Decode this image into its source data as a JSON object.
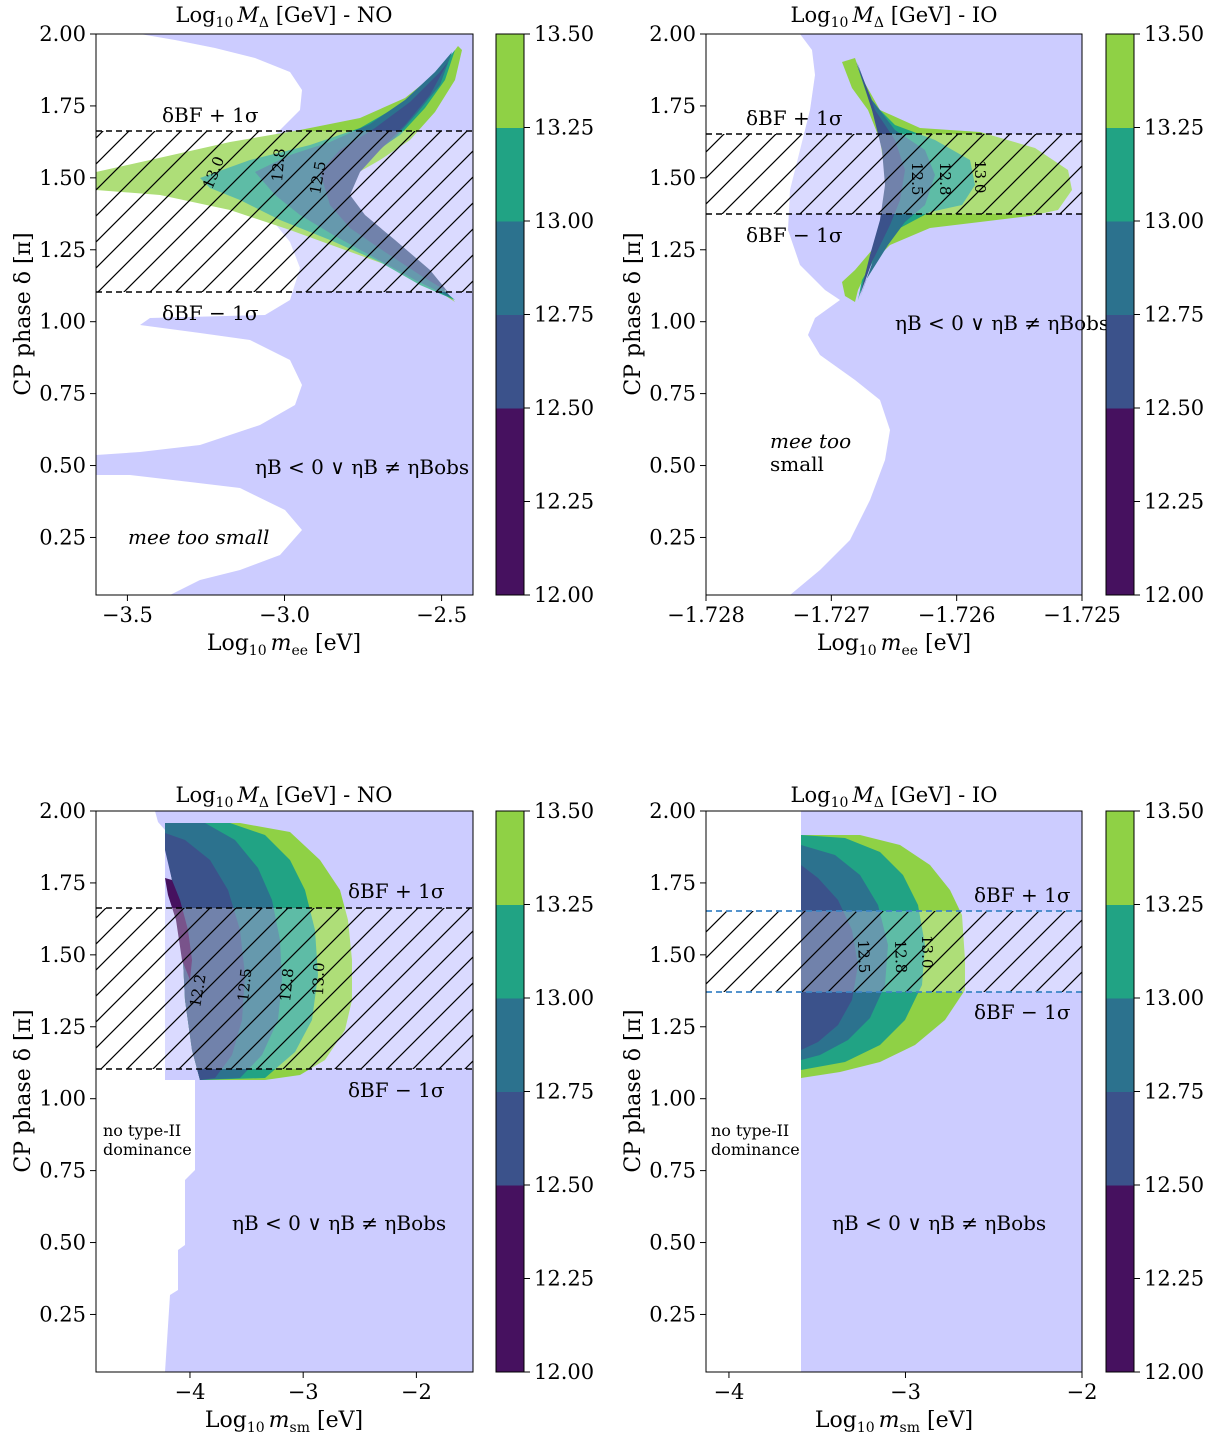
{
  "colors": {
    "excluded_region": "#ccccff",
    "band_hatch": "#000000",
    "dashed_black": "#000000",
    "dashed_blue": "#3d85c6",
    "levels": [
      "#46115f",
      "#3b528b",
      "#2c728e",
      "#21a384",
      "#8fd145"
    ]
  },
  "chart_data": [
    {
      "type": "contour",
      "id": "panel_tl",
      "title_prefix": "Log",
      "title_sub": "10",
      "title_var": "M",
      "title_var_sub": "Δ",
      "title_suffix": " [GeV] - NO",
      "xlabel_prefix": "Log",
      "xlabel_sub": "10",
      "xlabel_var": "m",
      "xlabel_var_sub": "ee",
      "xlabel_unit": " [eV]",
      "ylabel": "CP phase δ [π]",
      "xlim": [
        -3.6,
        -2.4
      ],
      "ylim": [
        0.05,
        2.0
      ],
      "xticks": [
        "−3.5",
        "−3.0",
        "−2.5"
      ],
      "xtick_values": [
        -3.5,
        -3.0,
        -2.5
      ],
      "yticks": [
        "0.25",
        "0.50",
        "0.75",
        "1.00",
        "1.25",
        "1.50",
        "1.75",
        "2.00"
      ],
      "ytick_values": [
        0.25,
        0.5,
        0.75,
        1.0,
        1.25,
        1.5,
        1.75,
        2.0
      ],
      "band": {
        "lower": 1.1,
        "upper": 1.66,
        "line_style": "black-dashed"
      },
      "band_upper_label": "δBF + 1σ",
      "band_lower_label": "δBF − 1σ",
      "contour_labels": [
        "13.0",
        "12.8",
        "12.5"
      ],
      "annotations": [
        "ηB < 0 ∨ ηB ≠ ηBobs",
        "mee too small"
      ],
      "colorbar": {
        "min": 12.0,
        "max": 13.5,
        "ticks": [
          "12.00",
          "12.25",
          "12.50",
          "12.75",
          "13.00",
          "13.25",
          "13.50"
        ]
      }
    },
    {
      "type": "contour",
      "id": "panel_tr",
      "title_prefix": "Log",
      "title_sub": "10",
      "title_var": "M",
      "title_var_sub": "Δ",
      "title_suffix": " [GeV] - IO",
      "xlabel_prefix": "Log",
      "xlabel_sub": "10",
      "xlabel_var": "m",
      "xlabel_var_sub": "ee",
      "xlabel_unit": " [eV]",
      "ylabel": "CP phase δ [π]",
      "xlim": [
        -1.728,
        -1.725
      ],
      "ylim": [
        0.05,
        2.0
      ],
      "xticks": [
        "−1.728",
        "−1.727",
        "−1.726",
        "−1.725"
      ],
      "xtick_values": [
        -1.728,
        -1.727,
        -1.726,
        -1.725
      ],
      "yticks": [
        "0.25",
        "0.50",
        "0.75",
        "1.00",
        "1.25",
        "1.50",
        "1.75",
        "2.00"
      ],
      "ytick_values": [
        0.25,
        0.5,
        0.75,
        1.0,
        1.25,
        1.5,
        1.75,
        2.0
      ],
      "band": {
        "lower": 1.37,
        "upper": 1.65,
        "line_style": "black-dashed"
      },
      "band_upper_label": "δBF + 1σ",
      "band_lower_label": "δBF − 1σ",
      "contour_labels": [
        "12.5",
        "12.8",
        "13.0"
      ],
      "annotations": [
        "ηB < 0 ∨ ηB ≠ ηBobs",
        "mee too",
        "small"
      ],
      "colorbar": {
        "min": 12.0,
        "max": 13.5,
        "ticks": [
          "12.00",
          "12.25",
          "12.50",
          "12.75",
          "13.00",
          "13.25",
          "13.50"
        ]
      }
    },
    {
      "type": "contour",
      "id": "panel_bl",
      "title_prefix": "Log",
      "title_sub": "10",
      "title_var": "M",
      "title_var_sub": "Δ",
      "title_suffix": " [GeV] - NO",
      "xlabel_prefix": "Log",
      "xlabel_sub": "10",
      "xlabel_var": "m",
      "xlabel_var_sub": "sm",
      "xlabel_unit": " [eV]",
      "ylabel": "CP phase δ [π]",
      "xlim": [
        -4.83,
        -1.5
      ],
      "ylim": [
        0.05,
        2.0
      ],
      "xticks": [
        "−4",
        "−3",
        "−2"
      ],
      "xtick_values": [
        -4,
        -3,
        -2
      ],
      "yticks": [
        "0.25",
        "0.50",
        "0.75",
        "1.00",
        "1.25",
        "1.50",
        "1.75",
        "2.00"
      ],
      "ytick_values": [
        0.25,
        0.5,
        0.75,
        1.0,
        1.25,
        1.5,
        1.75,
        2.0
      ],
      "band": {
        "lower": 1.1,
        "upper": 1.66,
        "line_style": "black-dashed"
      },
      "band_upper_label": "δBF + 1σ",
      "band_lower_label": "δBF − 1σ",
      "contour_labels": [
        "12.2",
        "12.5",
        "12.8",
        "13.0"
      ],
      "annotations": [
        "ηB < 0 ∨ ηB ≠ ηBobs",
        "no type-II",
        "dominance"
      ],
      "colorbar": {
        "min": 12.0,
        "max": 13.5,
        "ticks": [
          "12.00",
          "12.25",
          "12.50",
          "12.75",
          "13.00",
          "13.25",
          "13.50"
        ]
      }
    },
    {
      "type": "contour",
      "id": "panel_br",
      "title_prefix": "Log",
      "title_sub": "10",
      "title_var": "M",
      "title_var_sub": "Δ",
      "title_suffix": " [GeV] - IO",
      "xlabel_prefix": "Log",
      "xlabel_sub": "10",
      "xlabel_var": "m",
      "xlabel_var_sub": "sm",
      "xlabel_unit": " [eV]",
      "ylabel": "CP phase δ [π]",
      "xlim": [
        -4.13,
        -2.0
      ],
      "ylim": [
        0.05,
        2.0
      ],
      "xticks": [
        "−4",
        "−3",
        "−2"
      ],
      "xtick_values": [
        -4,
        -3,
        -2
      ],
      "yticks": [
        "0.25",
        "0.50",
        "0.75",
        "1.00",
        "1.25",
        "1.50",
        "1.75",
        "2.00"
      ],
      "ytick_values": [
        0.25,
        0.5,
        0.75,
        1.0,
        1.25,
        1.5,
        1.75,
        2.0
      ],
      "band": {
        "lower": 1.37,
        "upper": 1.65,
        "line_style": "blue-dashed"
      },
      "band_upper_label": "δBF + 1σ",
      "band_lower_label": "δBF − 1σ",
      "contour_labels": [
        "12.5",
        "12.8",
        "13.0"
      ],
      "annotations": [
        "ηB < 0 ∨ ηB ≠ ηBobs",
        "no type-II",
        "dominance"
      ],
      "colorbar": {
        "min": 12.0,
        "max": 13.5,
        "ticks": [
          "12.00",
          "12.25",
          "12.50",
          "12.75",
          "13.00",
          "13.25",
          "13.50"
        ]
      }
    }
  ]
}
